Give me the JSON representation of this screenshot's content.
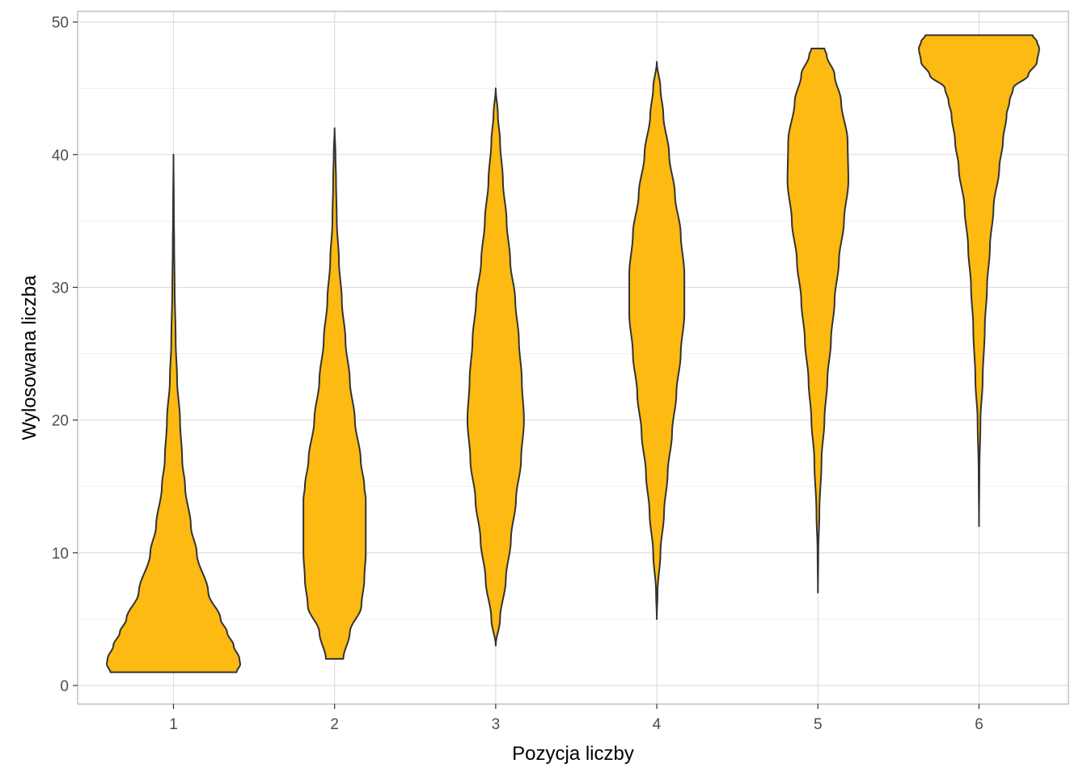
{
  "chart_data": {
    "type": "violin",
    "title": "",
    "xlabel": "Pozycja liczby",
    "ylabel": "Wylosowana liczba",
    "categories": [
      "1",
      "2",
      "3",
      "4",
      "5",
      "6"
    ],
    "ylim": [
      -1.4,
      50.8
    ],
    "yticks": [
      0,
      10,
      20,
      30,
      40,
      50
    ],
    "grid": true,
    "legend": "none",
    "fill_color": "#FCBA12",
    "outline_color": "#333333",
    "series": [
      {
        "category": "1",
        "ymin": 1,
        "ymax": 40,
        "profile": [
          [
            1,
            0.87
          ],
          [
            1.6,
            0.92
          ],
          [
            2,
            0.91
          ],
          [
            3,
            0.83
          ],
          [
            4,
            0.74
          ],
          [
            5,
            0.65
          ],
          [
            7,
            0.48
          ],
          [
            10,
            0.32
          ],
          [
            12,
            0.24
          ],
          [
            15,
            0.16
          ],
          [
            17,
            0.12
          ],
          [
            20,
            0.09
          ],
          [
            23,
            0.05
          ],
          [
            26,
            0.03
          ],
          [
            30,
            0.016
          ],
          [
            33,
            0.01
          ],
          [
            36,
            0.005
          ],
          [
            40,
            0
          ]
        ]
      },
      {
        "category": "2",
        "ymin": 2,
        "ymax": 42,
        "profile": [
          [
            2,
            0.12
          ],
          [
            4,
            0.21
          ],
          [
            6,
            0.37
          ],
          [
            8,
            0.41
          ],
          [
            10,
            0.43
          ],
          [
            12,
            0.43
          ],
          [
            14,
            0.43
          ],
          [
            15,
            0.41
          ],
          [
            17,
            0.36
          ],
          [
            20,
            0.28
          ],
          [
            23,
            0.21
          ],
          [
            26,
            0.15
          ],
          [
            29,
            0.1
          ],
          [
            32,
            0.06
          ],
          [
            35,
            0.03
          ],
          [
            38,
            0.02
          ],
          [
            40,
            0.012
          ],
          [
            42,
            0
          ]
        ]
      },
      {
        "category": "3",
        "ymin": 3,
        "ymax": 45,
        "profile": [
          [
            3,
            0
          ],
          [
            5,
            0.06
          ],
          [
            8,
            0.14
          ],
          [
            11,
            0.21
          ],
          [
            14,
            0.28
          ],
          [
            17,
            0.35
          ],
          [
            20,
            0.39
          ],
          [
            23,
            0.36
          ],
          [
            26,
            0.32
          ],
          [
            29,
            0.27
          ],
          [
            32,
            0.2
          ],
          [
            35,
            0.15
          ],
          [
            38,
            0.1
          ],
          [
            41,
            0.06
          ],
          [
            43,
            0.03
          ],
          [
            45,
            0
          ]
        ]
      },
      {
        "category": "4",
        "ymin": 5,
        "ymax": 47,
        "profile": [
          [
            5,
            0
          ],
          [
            7,
            0.01
          ],
          [
            10,
            0.05
          ],
          [
            13,
            0.1
          ],
          [
            16,
            0.15
          ],
          [
            19,
            0.21
          ],
          [
            22,
            0.27
          ],
          [
            25,
            0.33
          ],
          [
            28,
            0.38
          ],
          [
            31,
            0.38
          ],
          [
            34,
            0.33
          ],
          [
            37,
            0.25
          ],
          [
            40,
            0.17
          ],
          [
            43,
            0.09
          ],
          [
            45,
            0.05
          ],
          [
            47,
            0
          ]
        ]
      },
      {
        "category": "5",
        "ymin": 7,
        "ymax": 48,
        "profile": [
          [
            7,
            0
          ],
          [
            10,
            0.005
          ],
          [
            13,
            0.02
          ],
          [
            17,
            0.05
          ],
          [
            20,
            0.09
          ],
          [
            23,
            0.13
          ],
          [
            26,
            0.18
          ],
          [
            29,
            0.23
          ],
          [
            32,
            0.29
          ],
          [
            35,
            0.36
          ],
          [
            38,
            0.42
          ],
          [
            41,
            0.41
          ],
          [
            44,
            0.32
          ],
          [
            46,
            0.23
          ],
          [
            47.5,
            0.12
          ],
          [
            48,
            0.09
          ]
        ]
      },
      {
        "category": "6",
        "ymin": 12,
        "ymax": 49,
        "profile": [
          [
            12,
            0
          ],
          [
            16,
            0.005
          ],
          [
            20,
            0.02
          ],
          [
            23,
            0.05
          ],
          [
            27,
            0.08
          ],
          [
            30,
            0.11
          ],
          [
            33,
            0.15
          ],
          [
            36,
            0.2
          ],
          [
            39,
            0.28
          ],
          [
            41,
            0.33
          ],
          [
            43,
            0.38
          ],
          [
            44,
            0.42
          ],
          [
            45,
            0.47
          ],
          [
            46,
            0.68
          ],
          [
            47,
            0.8
          ],
          [
            48,
            0.83
          ],
          [
            48.5,
            0.8
          ],
          [
            49,
            0.74
          ]
        ]
      }
    ]
  }
}
